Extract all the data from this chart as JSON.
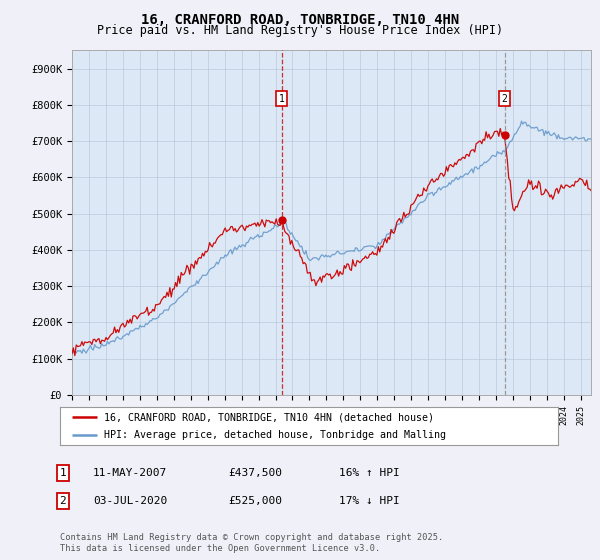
{
  "title": "16, CRANFORD ROAD, TONBRIDGE, TN10 4HN",
  "subtitle": "Price paid vs. HM Land Registry's House Price Index (HPI)",
  "ylim": [
    0,
    950000
  ],
  "yticks": [
    0,
    100000,
    200000,
    300000,
    400000,
    500000,
    600000,
    700000,
    800000,
    900000
  ],
  "ytick_labels": [
    "£0",
    "£100K",
    "£200K",
    "£300K",
    "£400K",
    "£500K",
    "£600K",
    "£700K",
    "£800K",
    "£900K"
  ],
  "background_color": "#f0f0f8",
  "plot_bg_color": "#dce8f5",
  "grid_color": "#b0c4d8",
  "red_color": "#cc0000",
  "blue_color": "#6699cc",
  "marker1_x": 2007.36,
  "marker1_y": 437500,
  "marker2_x": 2020.51,
  "marker2_y": 525000,
  "legend_line1": "16, CRANFORD ROAD, TONBRIDGE, TN10 4HN (detached house)",
  "legend_line2": "HPI: Average price, detached house, Tonbridge and Malling",
  "marker1_date_label": "11-MAY-2007",
  "marker1_price": "£437,500",
  "marker1_hpi": "16% ↑ HPI",
  "marker2_date_label": "03-JUL-2020",
  "marker2_price": "£525,000",
  "marker2_hpi": "17% ↓ HPI",
  "footnote": "Contains HM Land Registry data © Crown copyright and database right 2025.\nThis data is licensed under the Open Government Licence v3.0.",
  "xlim_start": 1995.0,
  "xlim_end": 2025.6
}
